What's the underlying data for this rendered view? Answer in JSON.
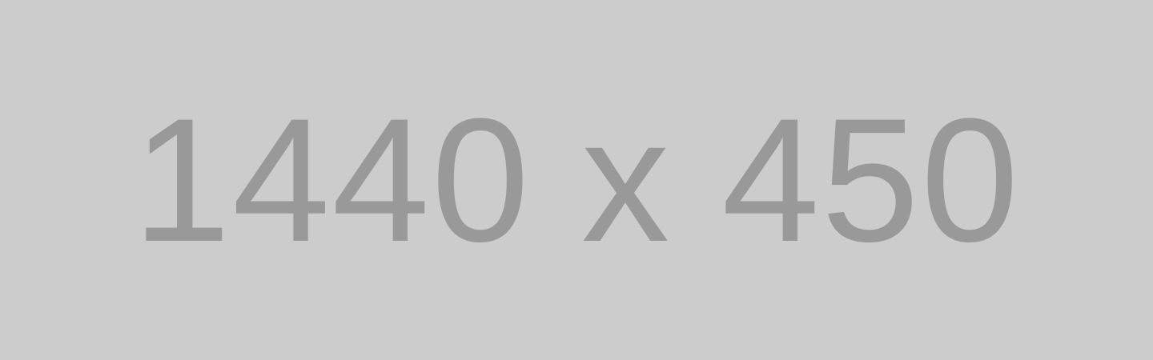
{
  "placeholder": {
    "text": "1440 x 450",
    "background_color": "#cccccc",
    "text_color": "#999999"
  }
}
